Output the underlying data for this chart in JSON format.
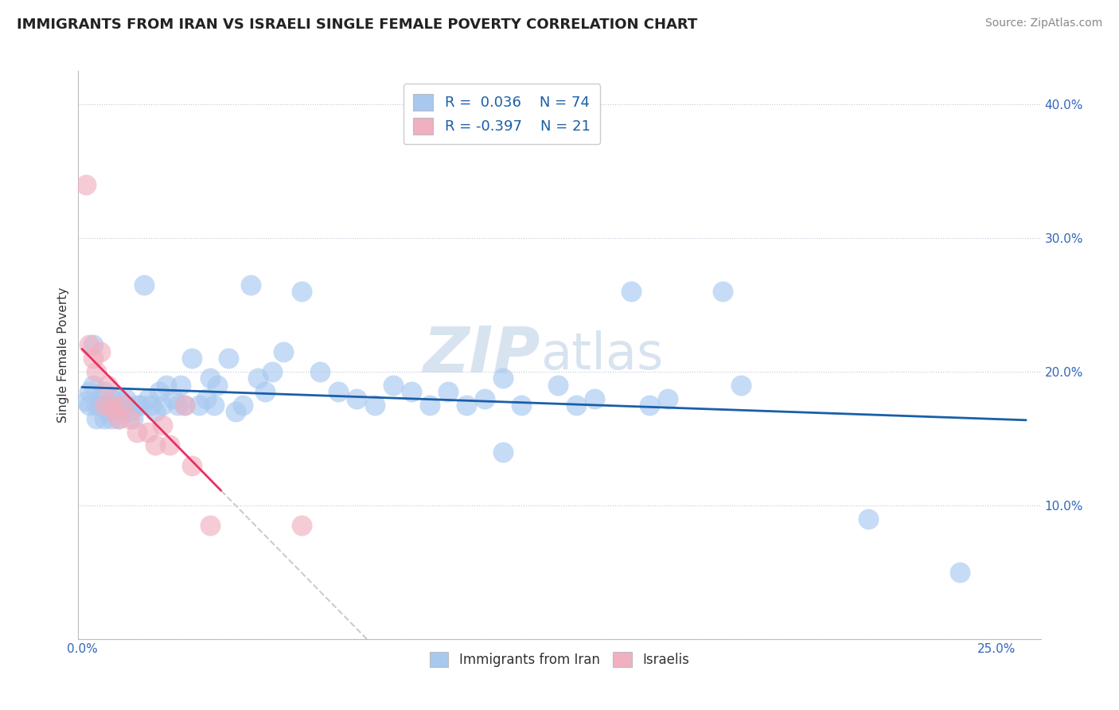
{
  "title": "IMMIGRANTS FROM IRAN VS ISRAELI SINGLE FEMALE POVERTY CORRELATION CHART",
  "source": "Source: ZipAtlas.com",
  "ylabel_label": "Single Female Poverty",
  "xlim": [
    -0.001,
    0.262
  ],
  "ylim": [
    0.0,
    0.425
  ],
  "blue_R": "0.036",
  "blue_N": "74",
  "pink_R": "-0.397",
  "pink_N": "21",
  "blue_color": "#a8c8f0",
  "pink_color": "#f0b0c0",
  "blue_line_color": "#1a5fa8",
  "pink_line_color": "#e83060",
  "dash_color": "#cccccc",
  "watermark_color": "#c8d8ea",
  "blue_points": [
    [
      0.001,
      0.178
    ],
    [
      0.002,
      0.175
    ],
    [
      0.002,
      0.185
    ],
    [
      0.003,
      0.22
    ],
    [
      0.003,
      0.19
    ],
    [
      0.004,
      0.175
    ],
    [
      0.004,
      0.165
    ],
    [
      0.005,
      0.18
    ],
    [
      0.005,
      0.175
    ],
    [
      0.006,
      0.185
    ],
    [
      0.006,
      0.165
    ],
    [
      0.007,
      0.175
    ],
    [
      0.007,
      0.17
    ],
    [
      0.008,
      0.18
    ],
    [
      0.008,
      0.165
    ],
    [
      0.009,
      0.175
    ],
    [
      0.009,
      0.17
    ],
    [
      0.01,
      0.18
    ],
    [
      0.01,
      0.165
    ],
    [
      0.011,
      0.175
    ],
    [
      0.012,
      0.18
    ],
    [
      0.013,
      0.17
    ],
    [
      0.014,
      0.165
    ],
    [
      0.015,
      0.175
    ],
    [
      0.016,
      0.175
    ],
    [
      0.017,
      0.265
    ],
    [
      0.018,
      0.18
    ],
    [
      0.019,
      0.175
    ],
    [
      0.02,
      0.17
    ],
    [
      0.021,
      0.185
    ],
    [
      0.022,
      0.175
    ],
    [
      0.023,
      0.19
    ],
    [
      0.025,
      0.18
    ],
    [
      0.026,
      0.175
    ],
    [
      0.027,
      0.19
    ],
    [
      0.028,
      0.175
    ],
    [
      0.03,
      0.21
    ],
    [
      0.032,
      0.175
    ],
    [
      0.034,
      0.18
    ],
    [
      0.035,
      0.195
    ],
    [
      0.036,
      0.175
    ],
    [
      0.037,
      0.19
    ],
    [
      0.04,
      0.21
    ],
    [
      0.042,
      0.17
    ],
    [
      0.044,
      0.175
    ],
    [
      0.046,
      0.265
    ],
    [
      0.048,
      0.195
    ],
    [
      0.05,
      0.185
    ],
    [
      0.052,
      0.2
    ],
    [
      0.055,
      0.215
    ],
    [
      0.06,
      0.26
    ],
    [
      0.065,
      0.2
    ],
    [
      0.07,
      0.185
    ],
    [
      0.075,
      0.18
    ],
    [
      0.08,
      0.175
    ],
    [
      0.085,
      0.19
    ],
    [
      0.09,
      0.185
    ],
    [
      0.095,
      0.175
    ],
    [
      0.1,
      0.185
    ],
    [
      0.105,
      0.175
    ],
    [
      0.11,
      0.18
    ],
    [
      0.115,
      0.14
    ],
    [
      0.115,
      0.195
    ],
    [
      0.12,
      0.175
    ],
    [
      0.13,
      0.19
    ],
    [
      0.135,
      0.175
    ],
    [
      0.14,
      0.18
    ],
    [
      0.15,
      0.26
    ],
    [
      0.155,
      0.175
    ],
    [
      0.16,
      0.18
    ],
    [
      0.175,
      0.26
    ],
    [
      0.18,
      0.19
    ],
    [
      0.215,
      0.09
    ],
    [
      0.24,
      0.05
    ]
  ],
  "pink_points": [
    [
      0.001,
      0.34
    ],
    [
      0.002,
      0.22
    ],
    [
      0.003,
      0.21
    ],
    [
      0.004,
      0.2
    ],
    [
      0.005,
      0.215
    ],
    [
      0.006,
      0.175
    ],
    [
      0.007,
      0.19
    ],
    [
      0.008,
      0.175
    ],
    [
      0.009,
      0.17
    ],
    [
      0.01,
      0.165
    ],
    [
      0.011,
      0.175
    ],
    [
      0.013,
      0.165
    ],
    [
      0.015,
      0.155
    ],
    [
      0.018,
      0.155
    ],
    [
      0.02,
      0.145
    ],
    [
      0.022,
      0.16
    ],
    [
      0.024,
      0.145
    ],
    [
      0.028,
      0.175
    ],
    [
      0.03,
      0.13
    ],
    [
      0.035,
      0.085
    ],
    [
      0.06,
      0.085
    ]
  ],
  "y_ticks": [
    0.0,
    0.1,
    0.2,
    0.3,
    0.4
  ],
  "y_tick_labels": [
    "",
    "10.0%",
    "20.0%",
    "30.0%",
    "40.0%"
  ],
  "x_ticks": [
    0.0,
    0.25
  ],
  "x_tick_labels": [
    "0.0%",
    "25.0%"
  ]
}
